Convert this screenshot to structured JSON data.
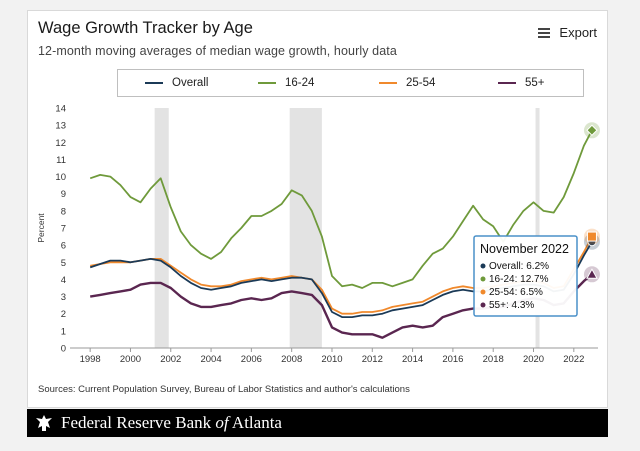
{
  "header": {
    "title": "Wage Growth Tracker by Age",
    "subtitle": "12-month moving averages of median wage growth, hourly data",
    "export_label": "Export"
  },
  "source_note": "Sources: Current Population Survey, Bureau of Labor Statistics and author's calculations",
  "footer": {
    "bank_main": "Federal Reserve Bank ",
    "bank_of": "of",
    "bank_city": " Atlanta"
  },
  "tooltip": {
    "title": "November 2022",
    "rows": [
      "Overall: 6.2%",
      "16-24: 12.7%",
      "25-54: 6.5%",
      "55+: 4.3%"
    ]
  },
  "colors": {
    "overall": "#1b3a57",
    "age_16_24": "#6f9a3b",
    "age_25_54": "#f0892c",
    "age_55_plus": "#5a2650",
    "recession": "#e3e3e3"
  },
  "chart_data": {
    "type": "line",
    "title": "Wage Growth Tracker by Age",
    "subtitle": "12-month moving averages of median wage growth, hourly data",
    "xlabel": "",
    "ylabel": "Percent",
    "ylim": [
      0,
      14
    ],
    "xlim": [
      1997.0,
      2023.2
    ],
    "yticks": [
      "0",
      "1",
      "2",
      "3",
      "4",
      "5",
      "6",
      "7",
      "8",
      "9",
      "10",
      "11",
      "12",
      "13",
      "14"
    ],
    "xticks": [
      "1998",
      "2000",
      "2002",
      "2004",
      "2006",
      "2008",
      "2010",
      "2012",
      "2014",
      "2016",
      "2018",
      "2020",
      "2022"
    ],
    "legend": "top",
    "recessions": [
      [
        2001.2,
        2001.9
      ],
      [
        2007.9,
        2009.5
      ],
      [
        2020.1,
        2020.3
      ]
    ],
    "series": [
      {
        "name": "Overall",
        "key": "overall",
        "x": [
          1998.0,
          1998.5,
          1999.0,
          1999.5,
          2000.0,
          2000.5,
          2001.0,
          2001.5,
          2002.0,
          2002.5,
          2003.0,
          2003.5,
          2004.0,
          2004.5,
          2005.0,
          2005.5,
          2006.0,
          2006.5,
          2007.0,
          2007.5,
          2008.0,
          2008.5,
          2009.0,
          2009.5,
          2010.0,
          2010.5,
          2011.0,
          2011.5,
          2012.0,
          2012.5,
          2013.0,
          2013.5,
          2014.0,
          2014.5,
          2015.0,
          2015.5,
          2016.0,
          2016.5,
          2017.0,
          2017.5,
          2018.0,
          2018.5,
          2019.0,
          2019.5,
          2020.0,
          2020.5,
          2021.0,
          2021.5,
          2022.0,
          2022.5,
          2022.9
        ],
        "y": [
          4.7,
          4.9,
          5.1,
          5.1,
          5.0,
          5.1,
          5.2,
          5.1,
          4.7,
          4.2,
          3.8,
          3.5,
          3.4,
          3.5,
          3.6,
          3.8,
          3.9,
          4.0,
          3.9,
          4.0,
          4.1,
          4.1,
          4.0,
          3.2,
          2.1,
          1.8,
          1.8,
          1.9,
          1.9,
          2.0,
          2.2,
          2.3,
          2.4,
          2.5,
          2.8,
          3.1,
          3.3,
          3.4,
          3.3,
          3.3,
          3.4,
          3.5,
          3.6,
          3.7,
          3.7,
          3.6,
          3.3,
          3.4,
          4.3,
          5.4,
          6.2
        ]
      },
      {
        "name": "16-24",
        "key": "age_16_24",
        "x": [
          1998.0,
          1998.5,
          1999.0,
          1999.5,
          2000.0,
          2000.5,
          2001.0,
          2001.5,
          2002.0,
          2002.5,
          2003.0,
          2003.5,
          2004.0,
          2004.5,
          2005.0,
          2005.5,
          2006.0,
          2006.5,
          2007.0,
          2007.5,
          2008.0,
          2008.5,
          2009.0,
          2009.5,
          2010.0,
          2010.5,
          2011.0,
          2011.5,
          2012.0,
          2012.5,
          2013.0,
          2013.5,
          2014.0,
          2014.5,
          2015.0,
          2015.5,
          2016.0,
          2016.5,
          2017.0,
          2017.5,
          2018.0,
          2018.5,
          2019.0,
          2019.5,
          2020.0,
          2020.5,
          2021.0,
          2021.5,
          2022.0,
          2022.5,
          2022.9
        ],
        "y": [
          9.9,
          10.1,
          10.0,
          9.5,
          8.8,
          8.5,
          9.3,
          9.9,
          8.2,
          6.8,
          6.0,
          5.5,
          5.2,
          5.6,
          6.4,
          7.0,
          7.7,
          7.7,
          8.0,
          8.4,
          9.2,
          8.9,
          8.0,
          6.5,
          4.2,
          3.6,
          3.7,
          3.5,
          3.8,
          3.8,
          3.6,
          3.8,
          4.0,
          4.8,
          5.5,
          5.8,
          6.5,
          7.4,
          8.3,
          7.5,
          7.1,
          6.2,
          7.2,
          8.0,
          8.5,
          8.0,
          7.9,
          8.8,
          10.2,
          11.8,
          12.7
        ]
      },
      {
        "name": "25-54",
        "key": "age_25_54",
        "x": [
          1998.0,
          1998.5,
          1999.0,
          1999.5,
          2000.0,
          2000.5,
          2001.0,
          2001.5,
          2002.0,
          2002.5,
          2003.0,
          2003.5,
          2004.0,
          2004.5,
          2005.0,
          2005.5,
          2006.0,
          2006.5,
          2007.0,
          2007.5,
          2008.0,
          2008.5,
          2009.0,
          2009.5,
          2010.0,
          2010.5,
          2011.0,
          2011.5,
          2012.0,
          2012.5,
          2013.0,
          2013.5,
          2014.0,
          2014.5,
          2015.0,
          2015.5,
          2016.0,
          2016.5,
          2017.0,
          2017.5,
          2018.0,
          2018.5,
          2019.0,
          2019.5,
          2020.0,
          2020.5,
          2021.0,
          2021.5,
          2022.0,
          2022.5,
          2022.9
        ],
        "y": [
          4.8,
          4.9,
          5.0,
          5.0,
          5.0,
          5.1,
          5.2,
          5.2,
          4.8,
          4.4,
          4.0,
          3.7,
          3.6,
          3.6,
          3.7,
          3.9,
          4.0,
          4.1,
          4.0,
          4.1,
          4.2,
          4.1,
          4.0,
          3.4,
          2.3,
          2.0,
          2.0,
          2.1,
          2.1,
          2.2,
          2.4,
          2.5,
          2.6,
          2.7,
          3.0,
          3.3,
          3.5,
          3.6,
          3.5,
          3.5,
          3.6,
          3.7,
          3.8,
          3.9,
          3.9,
          3.8,
          3.5,
          3.6,
          4.6,
          5.6,
          6.5
        ]
      },
      {
        "name": "55+",
        "key": "age_55_plus",
        "x": [
          1998.0,
          1998.5,
          1999.0,
          1999.5,
          2000.0,
          2000.5,
          2001.0,
          2001.5,
          2002.0,
          2002.5,
          2003.0,
          2003.5,
          2004.0,
          2004.5,
          2005.0,
          2005.5,
          2006.0,
          2006.5,
          2007.0,
          2007.5,
          2008.0,
          2008.5,
          2009.0,
          2009.5,
          2010.0,
          2010.5,
          2011.0,
          2011.5,
          2012.0,
          2012.5,
          2013.0,
          2013.5,
          2014.0,
          2014.5,
          2015.0,
          2015.5,
          2016.0,
          2016.5,
          2017.0,
          2017.5,
          2018.0,
          2018.5,
          2019.0,
          2019.5,
          2020.0,
          2020.5,
          2021.0,
          2021.5,
          2022.0,
          2022.5,
          2022.9
        ],
        "y": [
          3.0,
          3.1,
          3.2,
          3.3,
          3.4,
          3.7,
          3.8,
          3.8,
          3.5,
          3.0,
          2.6,
          2.4,
          2.4,
          2.5,
          2.6,
          2.8,
          2.9,
          2.8,
          2.9,
          3.2,
          3.3,
          3.2,
          3.1,
          2.5,
          1.2,
          0.9,
          0.8,
          0.8,
          0.8,
          0.6,
          0.9,
          1.2,
          1.3,
          1.2,
          1.3,
          1.8,
          2.0,
          2.2,
          2.3,
          2.3,
          2.4,
          2.4,
          2.6,
          2.8,
          2.9,
          2.8,
          2.5,
          2.6,
          3.3,
          3.9,
          4.3
        ]
      }
    ],
    "end_markers": {
      "overall": "circle",
      "age_16_24": "diamond",
      "age_25_54": "square",
      "age_55_plus": "triangle"
    }
  }
}
